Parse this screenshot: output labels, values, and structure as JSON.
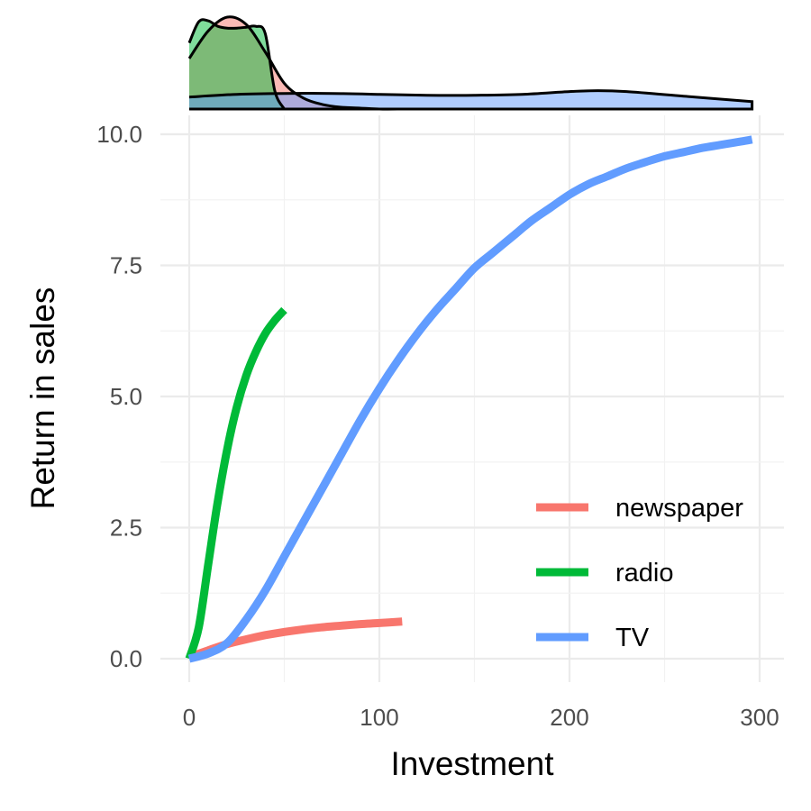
{
  "chart_data": {
    "type": "line",
    "xlabel": "Investment",
    "ylabel": "Return in sales",
    "xlim": [
      0,
      300
    ],
    "ylim": [
      0,
      10
    ],
    "x_ticks": [
      0,
      100,
      200,
      300
    ],
    "x_tick_labels": [
      "0",
      "100",
      "200",
      "300"
    ],
    "y_ticks": [
      0,
      2.5,
      5,
      7.5,
      10
    ],
    "y_tick_labels": [
      "0.0",
      "2.5",
      "5.0",
      "7.5",
      "10.0"
    ],
    "grid": true,
    "legend_position": "bottom-right",
    "series": [
      {
        "name": "newspaper",
        "color": "#F8766D",
        "x": [
          0,
          10,
          20,
          30,
          40,
          50,
          60,
          70,
          80,
          90,
          100,
          112
        ],
        "y": [
          0.03,
          0.16,
          0.28,
          0.37,
          0.45,
          0.51,
          0.56,
          0.6,
          0.63,
          0.66,
          0.68,
          0.71
        ]
      },
      {
        "name": "radio",
        "color": "#00BA38",
        "x": [
          0,
          5,
          10,
          15,
          20,
          25,
          30,
          35,
          40,
          45,
          50
        ],
        "y": [
          0.0,
          0.6,
          1.8,
          3.0,
          4.0,
          4.8,
          5.4,
          5.85,
          6.2,
          6.45,
          6.65
        ]
      },
      {
        "name": "TV",
        "color": "#619CFF",
        "x": [
          0,
          10,
          20,
          30,
          40,
          50,
          60,
          70,
          80,
          90,
          100,
          110,
          120,
          130,
          140,
          150,
          160,
          170,
          180,
          190,
          200,
          210,
          220,
          230,
          240,
          250,
          260,
          270,
          280,
          290,
          296
        ],
        "y": [
          0.0,
          0.1,
          0.3,
          0.75,
          1.3,
          1.95,
          2.6,
          3.25,
          3.9,
          4.55,
          5.15,
          5.7,
          6.2,
          6.65,
          7.05,
          7.45,
          7.75,
          8.05,
          8.35,
          8.6,
          8.85,
          9.05,
          9.2,
          9.35,
          9.47,
          9.58,
          9.66,
          9.74,
          9.8,
          9.86,
          9.9
        ]
      }
    ],
    "marginal_density": {
      "description_type": "density",
      "series": [
        {
          "name": "newspaper",
          "color": "#F8766D",
          "x": [
            0,
            10,
            20,
            30,
            40,
            50,
            60,
            70,
            80,
            90,
            100,
            112
          ],
          "density": [
            0.55,
            0.85,
            1.0,
            0.92,
            0.62,
            0.28,
            0.12,
            0.05,
            0.02,
            0.01,
            0.0,
            0.0
          ]
        },
        {
          "name": "radio",
          "color": "#00BA38",
          "x": [
            0,
            5,
            10,
            15,
            20,
            25,
            30,
            35,
            40,
            45,
            50
          ],
          "density": [
            0.72,
            0.95,
            0.96,
            0.9,
            0.88,
            0.88,
            0.89,
            0.9,
            0.82,
            0.2,
            0.0
          ]
        },
        {
          "name": "TV",
          "color": "#619CFF",
          "x": [
            0,
            25,
            50,
            75,
            100,
            125,
            150,
            175,
            200,
            215,
            230,
            260,
            296
          ],
          "density": [
            0.13,
            0.16,
            0.17,
            0.17,
            0.16,
            0.15,
            0.15,
            0.16,
            0.19,
            0.2,
            0.19,
            0.14,
            0.08
          ]
        }
      ]
    }
  }
}
